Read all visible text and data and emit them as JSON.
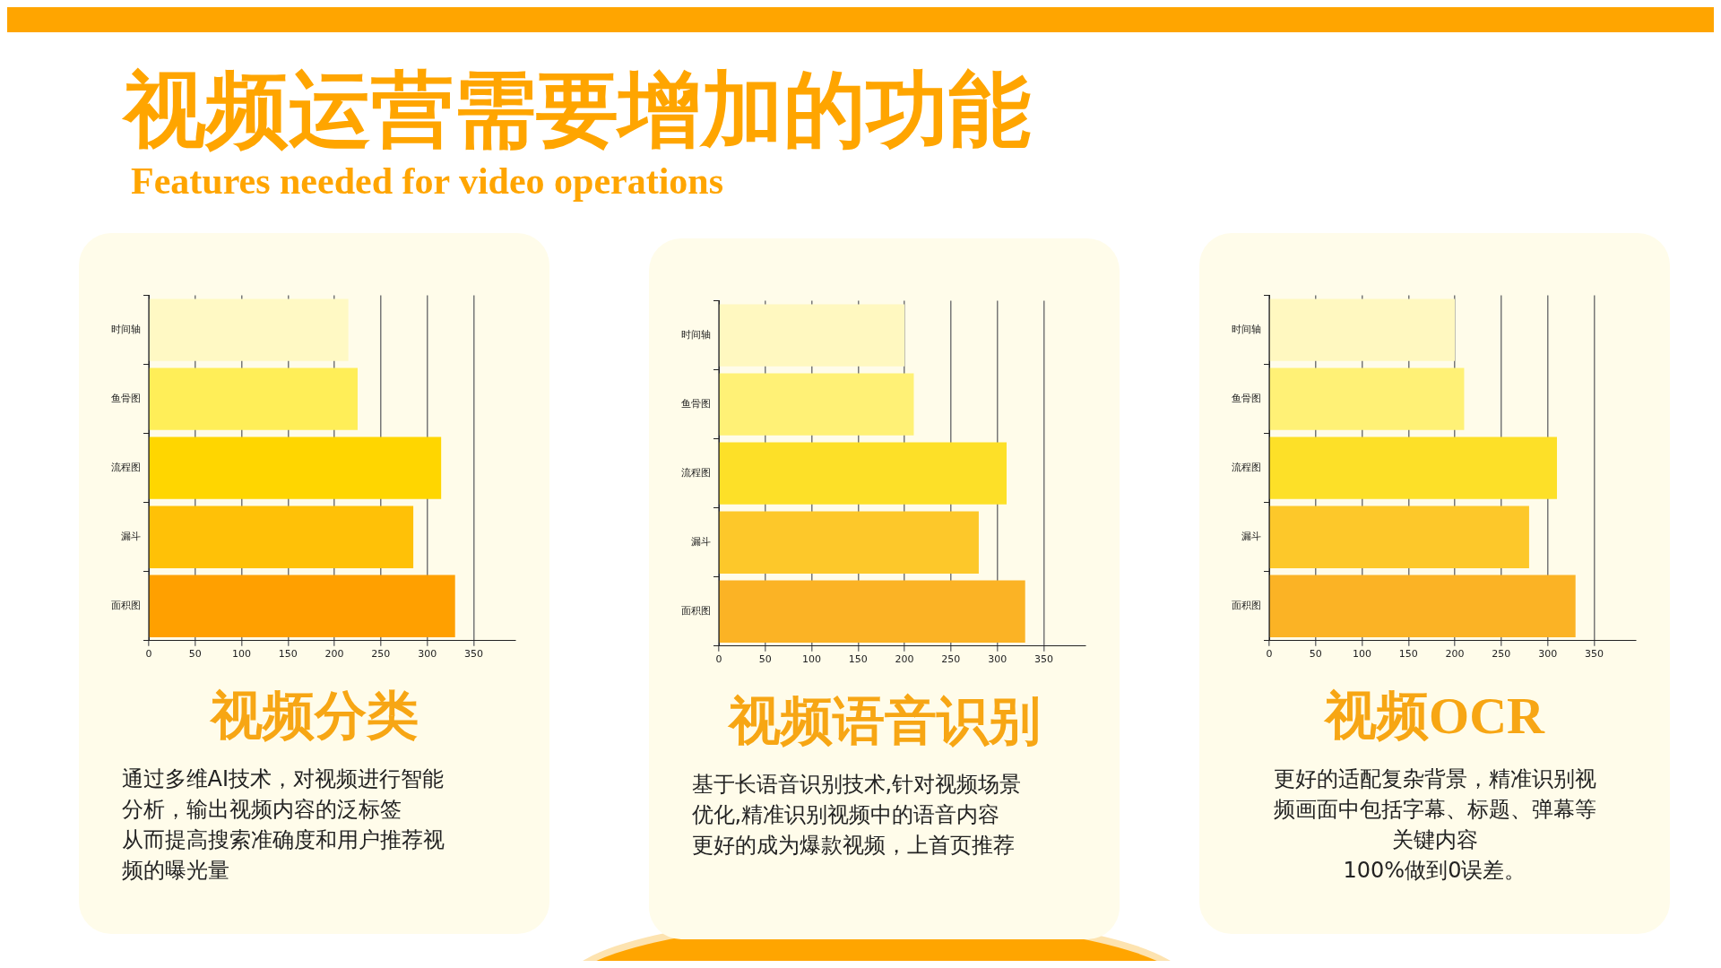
{
  "chart_data": [
    {
      "type": "other",
      "title": "视频运营需要增加的功能",
      "subtitle": "Features needed for video operations"
    },
    {
      "type": "bar",
      "orientation": "horizontal",
      "title": "视频分类",
      "categories": [
        "时间轴",
        "鱼骨图",
        "流程图",
        "漏斗",
        "面积图"
      ],
      "values": [
        215,
        225,
        315,
        285,
        330
      ],
      "colors": [
        "#fff9c4",
        "#ffee58",
        "#ffd600",
        "#ffc107",
        "#ffa000"
      ],
      "xlim": [
        0,
        395
      ],
      "xticks": [
        0,
        50,
        100,
        150,
        200,
        250,
        300,
        350
      ],
      "grid": "x",
      "annotations": [
        "通过多维AI技术，对视频进行智能",
        "分析，输出视频内容的泛标签",
        "从而提高搜索准确度和用户推荐视",
        "频的曝光量"
      ]
    },
    {
      "type": "bar",
      "orientation": "horizontal",
      "title": "视频语音识别",
      "categories": [
        "时间轴",
        "鱼骨图",
        "流程图",
        "漏斗",
        "面积图"
      ],
      "values": [
        200,
        210,
        310,
        280,
        330
      ],
      "colors": [
        "#fff8c0",
        "#fff176",
        "#fde028",
        "#fdc82a",
        "#fbb325"
      ],
      "xlim": [
        0,
        395
      ],
      "xticks": [
        0,
        50,
        100,
        150,
        200,
        250,
        300,
        350
      ],
      "grid": "x",
      "annotations": [
        "基于长语音识别技术,针对视频场景",
        "优化,精准识别视频中的语音内容",
        "更好的成为爆款视频，上首页推荐"
      ]
    },
    {
      "type": "bar",
      "orientation": "horizontal",
      "title": "视频OCR",
      "categories": [
        "时间轴",
        "鱼骨图",
        "流程图",
        "漏斗",
        "面积图"
      ],
      "values": [
        200,
        210,
        310,
        280,
        330
      ],
      "colors": [
        "#fff8c0",
        "#fff176",
        "#fde028",
        "#fdc82a",
        "#fbb325"
      ],
      "xlim": [
        0,
        395
      ],
      "xticks": [
        0,
        50,
        100,
        150,
        200,
        250,
        300,
        350
      ],
      "grid": "x",
      "annotations": [
        "更好的适配复杂背景，精准识别视",
        "频画面中包括字幕、标题、弹幕等",
        "关键内容",
        "100%做到0误差。"
      ]
    }
  ]
}
